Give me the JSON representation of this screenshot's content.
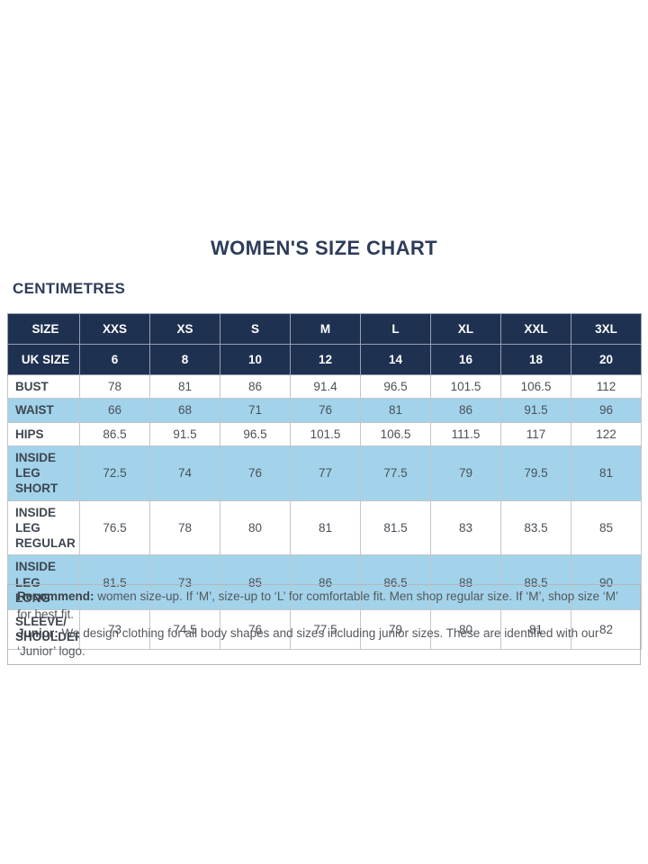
{
  "chart_data": {
    "type": "table",
    "title": "WOMEN'S SIZE CHART",
    "subtitle": "CENTIMETRES",
    "header_rows": [
      {
        "label": "SIZE",
        "values": [
          "XXS",
          "XS",
          "S",
          "M",
          "L",
          "XL",
          "XXL",
          "3XL"
        ]
      },
      {
        "label": "UK SIZE",
        "values": [
          "6",
          "8",
          "10",
          "12",
          "14",
          "16",
          "18",
          "20"
        ]
      }
    ],
    "body_rows": [
      {
        "label": "BUST",
        "highlight": false,
        "values": [
          "78",
          "81",
          "86",
          "91.4",
          "96.5",
          "101.5",
          "106.5",
          "112"
        ]
      },
      {
        "label": "WAIST",
        "highlight": true,
        "values": [
          "66",
          "68",
          "71",
          "76",
          "81",
          "86",
          "91.5",
          "96"
        ]
      },
      {
        "label": "HIPS",
        "highlight": false,
        "values": [
          "86.5",
          "91.5",
          "96.5",
          "101.5",
          "106.5",
          "111.5",
          "117",
          "122"
        ]
      },
      {
        "label": "INSIDE LEG SHORT",
        "highlight": true,
        "values": [
          "72.5",
          "74",
          "76",
          "77",
          "77.5",
          "79",
          "79.5",
          "81"
        ]
      },
      {
        "label": "INSIDE LEG REGULAR",
        "highlight": false,
        "values": [
          "76.5",
          "78",
          "80",
          "81",
          "81.5",
          "83",
          "83.5",
          "85"
        ]
      },
      {
        "label": "INSIDE LEG LONG",
        "highlight": true,
        "values": [
          "81.5",
          "73",
          "85",
          "86",
          "86.5",
          "88",
          "88.5",
          "90"
        ]
      },
      {
        "label": "SLEEVE/ SHOULDER",
        "highlight": false,
        "values": [
          "73",
          "74.5",
          "76",
          "77.5",
          "79",
          "80",
          "81",
          "82"
        ]
      }
    ],
    "notes": [
      {
        "label": "Recommend:",
        "text": "women size-up. If ‘M’, size-up to ‘L’ for comfortable fit. Men shop regular size. If ‘M’, shop size ‘M’ for best fit."
      },
      {
        "label": "Junior:",
        "text": "We design clothing for all body shapes and sizes including junior sizes. These are identified with our ‘Junior’ logo."
      }
    ],
    "colors": {
      "header_background": "#1f3150",
      "header_text": "#ffffff",
      "highlight_row_background": "#a2d3ea",
      "title_text": "#2d3c59",
      "body_text": "#4a5158"
    }
  }
}
